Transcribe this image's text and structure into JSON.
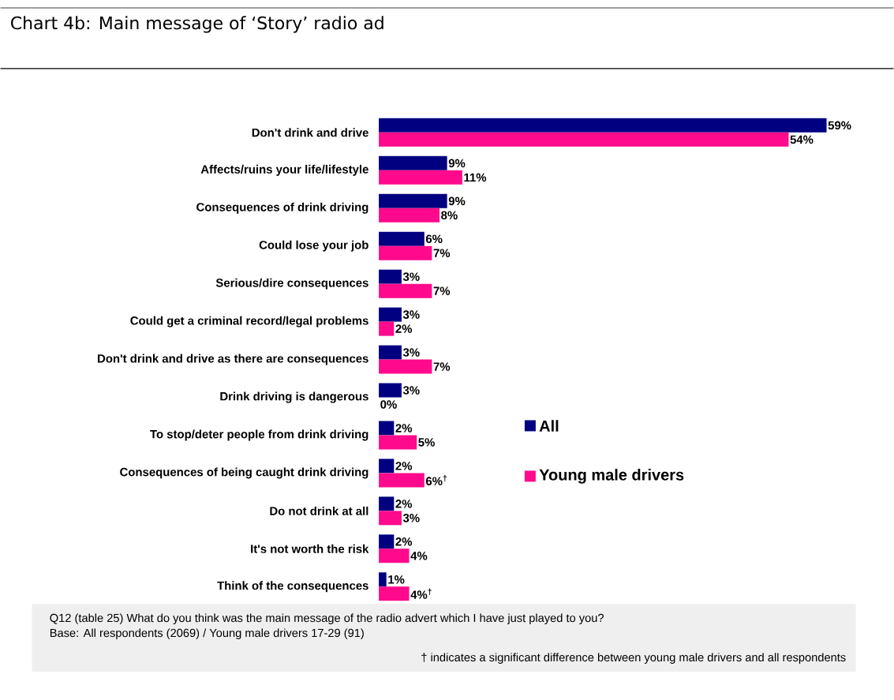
{
  "chart_data": {
    "type": "bar",
    "orientation": "horizontal",
    "title": "Chart 4b: Main message of ‘Story’ radio ad",
    "categories": [
      "Don't drink and drive",
      "Affects/ruins your life/lifestyle",
      "Consequences of drink driving",
      "Could lose your job",
      "Serious/dire consequences",
      "Could get a criminal record/legal problems",
      "Don't drink and drive as there are consequences",
      "Drink driving is dangerous",
      "To stop/deter people from drink driving",
      "Consequences of being caught drink driving",
      "Do not drink at all",
      "It's not worth the risk",
      "Think of the consequences"
    ],
    "series": [
      {
        "name": "All",
        "color": "#000080",
        "values": [
          59,
          9,
          9,
          6,
          3,
          3,
          3,
          3,
          2,
          2,
          2,
          2,
          1
        ],
        "value_labels": [
          "59%",
          "9%",
          "9%",
          "6%",
          "3%",
          "3%",
          "3%",
          "3%",
          "2%",
          "2%",
          "2%",
          "2%",
          "1%"
        ]
      },
      {
        "name": "Young male drivers",
        "color": "#ff0a8c",
        "values": [
          54,
          11,
          8,
          7,
          7,
          2,
          7,
          0,
          5,
          6,
          3,
          4,
          4
        ],
        "value_labels": [
          "54%",
          "11%",
          "8%",
          "7%",
          "7%",
          "2%",
          "7%",
          "0%",
          "5%",
          "6%$^{†}$",
          "3%",
          "4%",
          "4%$^{†}$"
        ]
      }
    ],
    "legend": "right",
    "annotations": [
      "Q12 (table 25) What do you think was the main message of the radio advert which I have just played to you?",
      "Base: All respondents (2069) / Young male drivers 17-29 (91)",
      "† indicates a significant difference between young male drivers and all respondents"
    ]
  }
}
